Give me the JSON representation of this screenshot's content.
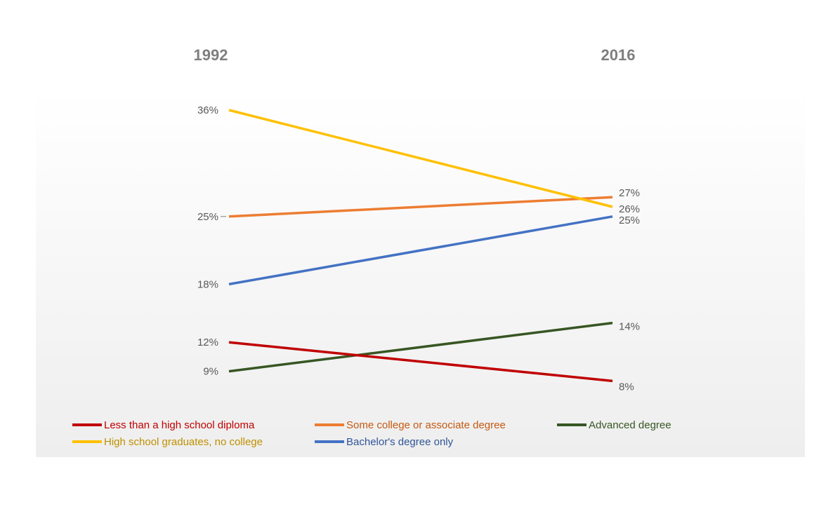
{
  "chart_data": {
    "type": "line",
    "x": [
      "1992",
      "2016"
    ],
    "ylim": [
      0,
      40
    ],
    "grid": false,
    "legend_placement": "bottom",
    "series": [
      {
        "name": "Less than a high school diploma",
        "values": [
          12,
          8
        ],
        "labels": [
          "12%",
          "8%"
        ],
        "color": "#c00000"
      },
      {
        "name": "High school graduates, no college",
        "values": [
          36,
          26
        ],
        "labels": [
          "36%",
          "26%"
        ],
        "color": "#ffc000"
      },
      {
        "name": "Some college or associate degree",
        "values": [
          25,
          27
        ],
        "labels": [
          "25%",
          "27%"
        ],
        "color": "#ed7d31"
      },
      {
        "name": "Bachelor's degree only",
        "values": [
          18,
          25
        ],
        "labels": [
          "18%",
          "25%"
        ],
        "color": "#4472c4"
      },
      {
        "name": "Advanced degree",
        "values": [
          9,
          14
        ],
        "labels": [
          "9%",
          "14%"
        ],
        "color": "#375623"
      }
    ]
  },
  "colors": {
    "background_gradient_top": "#ffffff",
    "background_gradient_bottom": "#efefef",
    "legend_text": {
      "Less than a high school diploma": "#c00000",
      "High school graduates, no college": "#bf9000",
      "Some college or associate degree": "#c55a11",
      "Bachelor's degree only": "#2f5597",
      "Advanced degree": "#375623"
    }
  }
}
